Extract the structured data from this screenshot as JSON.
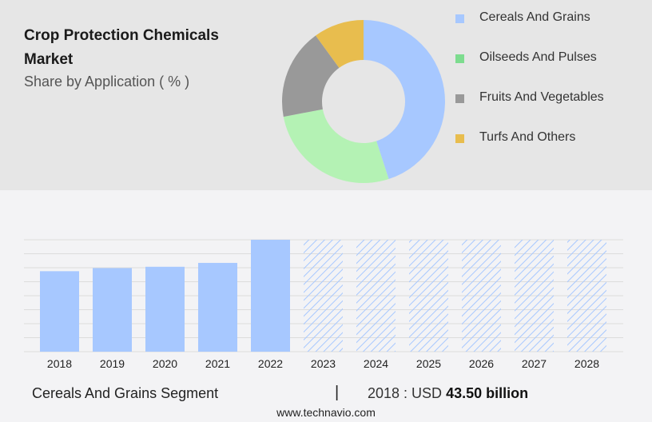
{
  "header": {
    "title": "Crop Protection Chemicals Market",
    "subtitle": "Share by Application ( % )"
  },
  "colors": {
    "cereals": "#a7c8ff",
    "oilseeds": "#b4f2b4",
    "fruits": "#999999",
    "turfs": "#e8bd4e",
    "legend_oilseeds": "#7ddc8f",
    "bar": "#a7c8ff",
    "forecast_hatch": "#a7c8ff"
  },
  "chart_data": [
    {
      "type": "pie",
      "title": "Share by Application ( % )",
      "categories": [
        "Cereals And Grains",
        "Oilseeds And Pulses",
        "Fruits And Vegetables",
        "Turfs And Others"
      ],
      "values": [
        45,
        27,
        18,
        10
      ],
      "legend_position": "right"
    },
    {
      "type": "bar",
      "categories": [
        "2018",
        "2019",
        "2020",
        "2021",
        "2022",
        "2023",
        "2024",
        "2025",
        "2026",
        "2027",
        "2028"
      ],
      "values": [
        43.5,
        45.2,
        45.9,
        48.0,
        60.5,
        60.5,
        60.5,
        60.5,
        60.5,
        60.5,
        60.5
      ],
      "forecast_from": "2023",
      "ylim": [
        0,
        60.5
      ],
      "grid": true
    }
  ],
  "footer": {
    "segment": "Cereals And Grains Segment",
    "divider": "|",
    "value_prefix": "2018 : USD",
    "value": "43.50 billion"
  },
  "source": "www.technavio.com"
}
